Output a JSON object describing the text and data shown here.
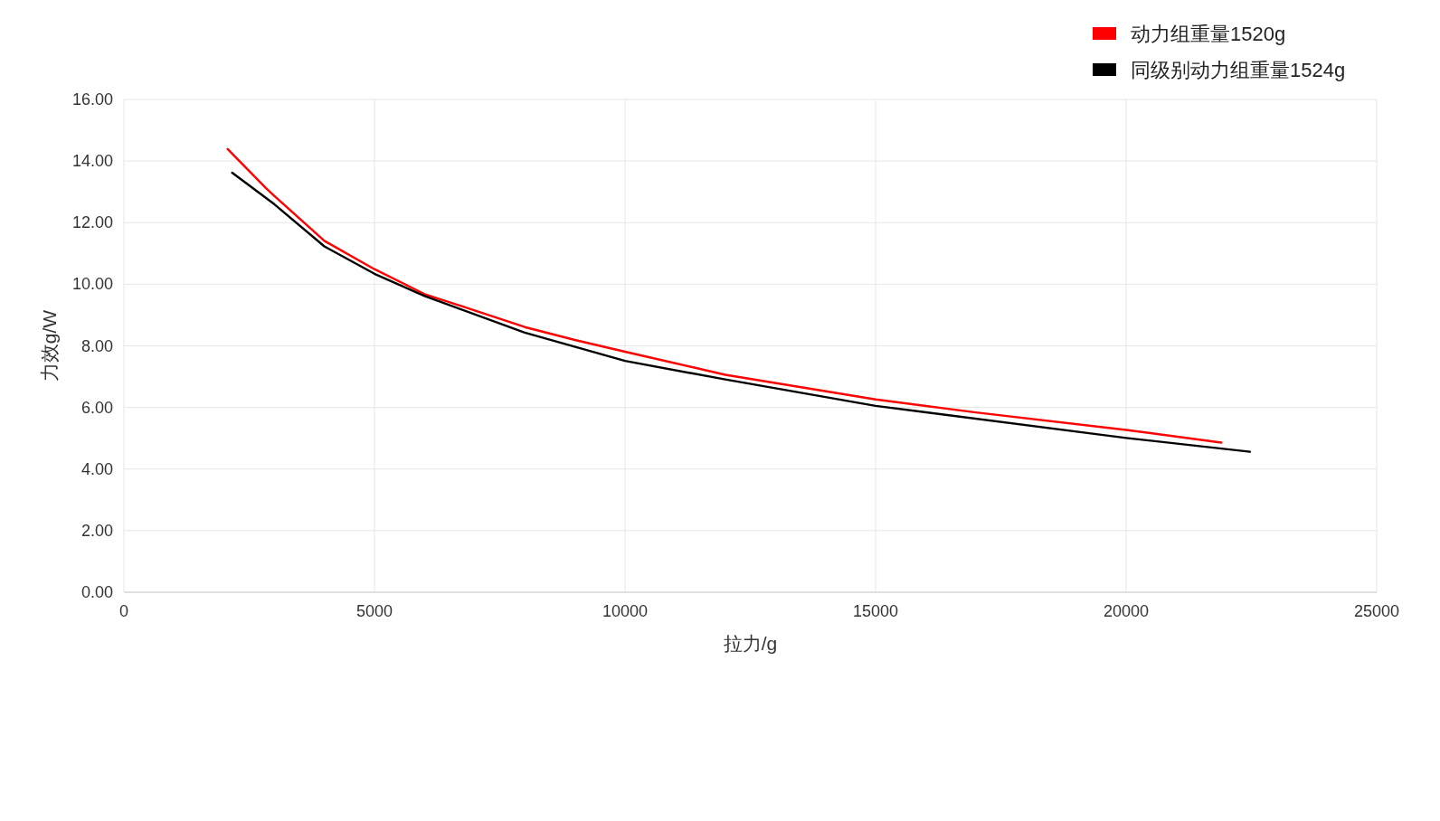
{
  "chart_data": {
    "type": "line",
    "xlabel": "拉力/g",
    "ylabel": "力效g/W",
    "xlim": [
      0,
      25000
    ],
    "xticks": [
      0,
      5000,
      10000,
      15000,
      20000,
      25000
    ],
    "ylim": [
      0,
      16
    ],
    "yticks": [
      {
        "value": 0,
        "label": "0.00"
      },
      {
        "value": 2,
        "label": "2.00"
      },
      {
        "value": 4,
        "label": "4.00"
      },
      {
        "value": 6,
        "label": "6.00"
      },
      {
        "value": 8,
        "label": "8.00"
      },
      {
        "value": 10,
        "label": "10.00"
      },
      {
        "value": 12,
        "label": "12.00"
      },
      {
        "value": 14,
        "label": "14.00"
      },
      {
        "value": 16,
        "label": "16.00"
      }
    ],
    "grid": true,
    "legend": "top right",
    "marker": "none",
    "line_style": "solid",
    "series": [
      {
        "name": "动力组重量1520g",
        "color": "#ff0000",
        "x": [
          2070,
          2840,
          3000,
          4000,
          5000,
          6000,
          7000,
          8000,
          9000,
          10000,
          12000,
          15000,
          17000,
          20000,
          21900
        ],
        "values": [
          14.39,
          13.11,
          12.87,
          11.41,
          10.49,
          9.68,
          9.15,
          8.61,
          8.19,
          7.81,
          7.06,
          6.26,
          5.84,
          5.27,
          4.86
        ]
      },
      {
        "name": "同级别动力组重量1524g",
        "color": "#000000",
        "x": [
          2160,
          3000,
          4000,
          5000,
          6000,
          8000,
          10000,
          12000,
          15000,
          20000,
          22470
        ],
        "values": [
          13.62,
          12.6,
          11.23,
          10.34,
          9.62,
          8.43,
          7.51,
          6.91,
          6.05,
          5.01,
          4.56
        ]
      }
    ]
  }
}
